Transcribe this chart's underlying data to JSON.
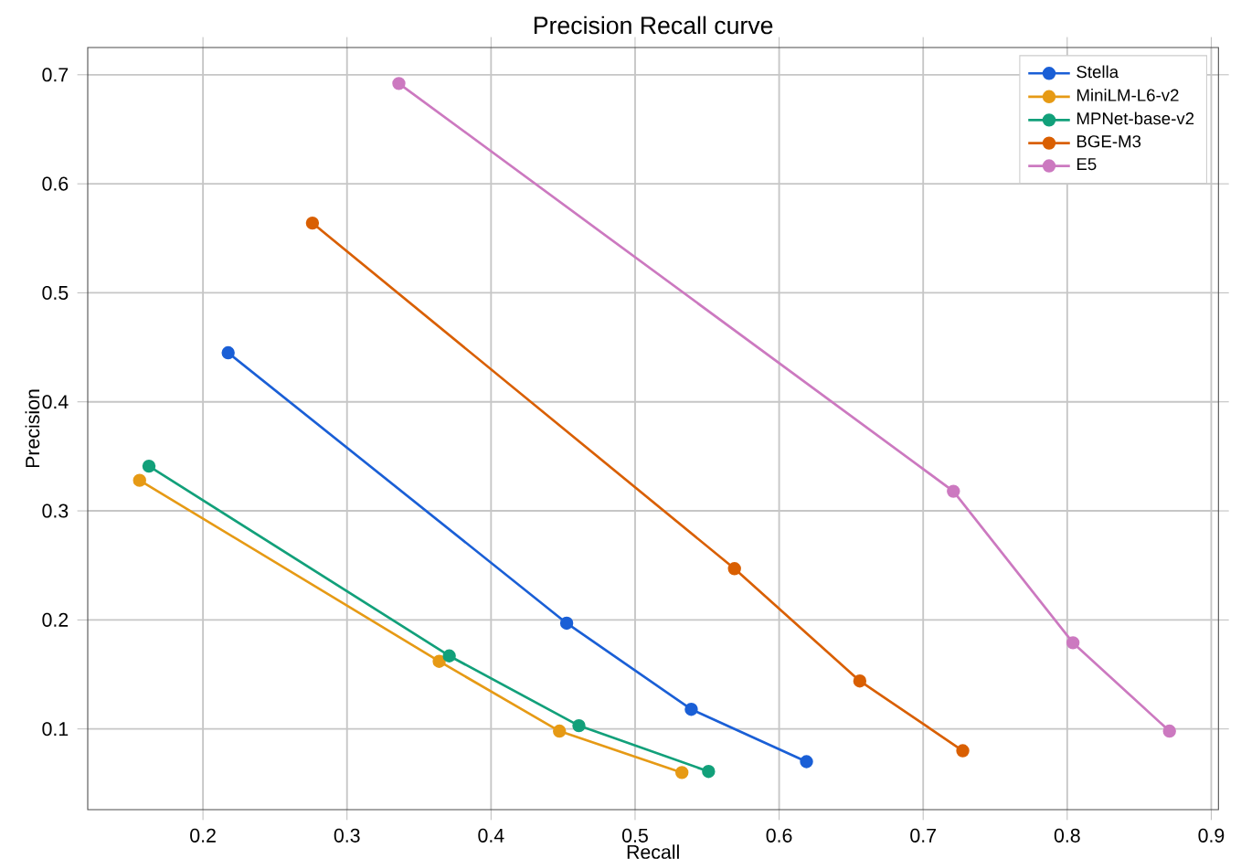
{
  "chart_data": {
    "type": "line",
    "title": "Precision Recall curve",
    "xlabel": "Recall",
    "ylabel": "Precision",
    "xlim": [
      0.12,
      0.905
    ],
    "ylim": [
      0.026,
      0.725
    ],
    "xticks": [
      0.2,
      0.3,
      0.4,
      0.5,
      0.6,
      0.7,
      0.8,
      0.9
    ],
    "yticks": [
      0.1,
      0.2,
      0.3,
      0.4,
      0.5,
      0.6,
      0.7
    ],
    "grid": true,
    "legend": "top right",
    "marker": "circle",
    "line_style": "solid",
    "series": [
      {
        "name": "Stella",
        "color": "#1a5fd6",
        "x": [
          0.2175,
          0.4525,
          0.539,
          0.619
        ],
        "values": [
          0.445,
          0.197,
          0.118,
          0.07
        ]
      },
      {
        "name": "MiniLM-L6-v2",
        "color": "#e69a15",
        "x": [
          0.156,
          0.364,
          0.4475,
          0.5325
        ],
        "values": [
          0.328,
          0.162,
          0.098,
          0.06
        ]
      },
      {
        "name": "MPNet-base-v2",
        "color": "#12a07a",
        "x": [
          0.1625,
          0.371,
          0.461,
          0.551
        ],
        "values": [
          0.341,
          0.167,
          0.103,
          0.061
        ]
      },
      {
        "name": "BGE-M3",
        "color": "#d95f02",
        "x": [
          0.276,
          0.569,
          0.656,
          0.7275
        ],
        "values": [
          0.564,
          0.247,
          0.144,
          0.08
        ]
      },
      {
        "name": "E5",
        "color": "#cc79c0",
        "x": [
          0.336,
          0.721,
          0.804,
          0.871
        ],
        "values": [
          0.692,
          0.318,
          0.179,
          0.098
        ]
      }
    ]
  }
}
